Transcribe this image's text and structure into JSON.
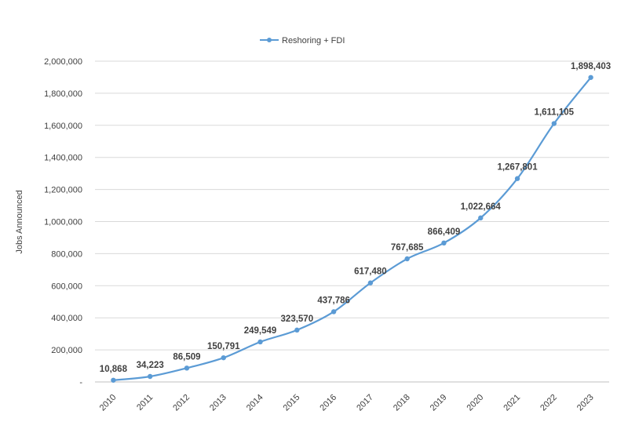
{
  "chart_data": {
    "type": "line",
    "title": "",
    "xlabel": "",
    "ylabel": "Jobs Announced",
    "categories": [
      "2010",
      "2011",
      "2012",
      "2013",
      "2014",
      "2015",
      "2016",
      "2017",
      "2018",
      "2019",
      "2020",
      "2021",
      "2022",
      "2023"
    ],
    "series": [
      {
        "name": "Reshoring + FDI",
        "color": "#5B9BD5",
        "values": [
          10868,
          34223,
          86509,
          150791,
          249549,
          323570,
          437786,
          617480,
          767685,
          866409,
          1022664,
          1267801,
          1611105,
          1898403
        ],
        "labels": [
          "10,868",
          "34,223",
          "86,509",
          "150,791",
          "249,549",
          "323,570",
          "437,786",
          "617,480",
          "767,685",
          "866,409",
          "1,022,664",
          "1,267,801",
          "1,611,105",
          "1,898,403"
        ]
      }
    ],
    "ylim": [
      0,
      2000000
    ],
    "yticks": [
      {
        "value": 0,
        "label": "-"
      },
      {
        "value": 200000,
        "label": "200,000"
      },
      {
        "value": 400000,
        "label": "400,000"
      },
      {
        "value": 600000,
        "label": "600,000"
      },
      {
        "value": 800000,
        "label": "800,000"
      },
      {
        "value": 1000000,
        "label": "1,000,000"
      },
      {
        "value": 1200000,
        "label": "1,200,000"
      },
      {
        "value": 1400000,
        "label": "1,400,000"
      },
      {
        "value": 1600000,
        "label": "1,600,000"
      },
      {
        "value": 1800000,
        "label": "1,800,000"
      },
      {
        "value": 2000000,
        "label": "2,000,000"
      }
    ],
    "grid": true,
    "legend_position": "top"
  }
}
